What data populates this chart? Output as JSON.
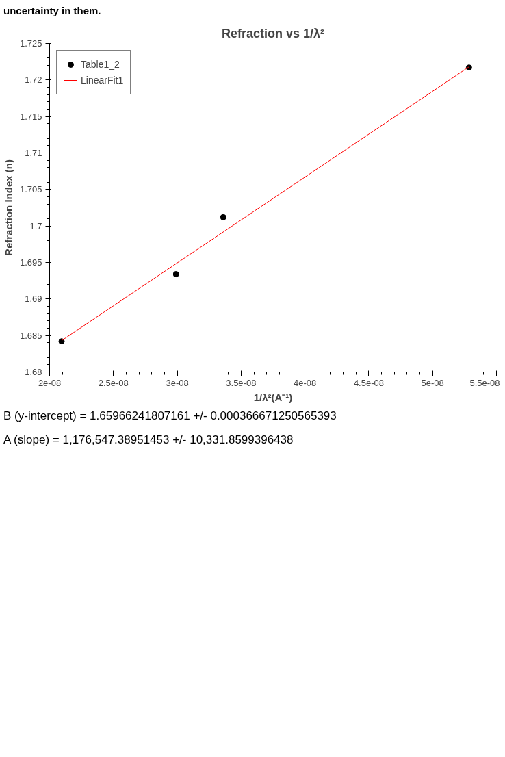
{
  "chart_data": {
    "type": "scatter",
    "title": "Refraction vs 1/λ²",
    "xlabel": "1/λ²(A⁻¹)",
    "ylabel": "Refraction Index (n)",
    "xlim": [
      2e-08,
      5.5e-08
    ],
    "ylim": [
      1.68,
      1.725
    ],
    "xticks": [
      {
        "value": 2e-08,
        "label": "2e-08"
      },
      {
        "value": 2.5e-08,
        "label": "2.5e-08"
      },
      {
        "value": 3e-08,
        "label": "3e-08"
      },
      {
        "value": 3.5e-08,
        "label": "3.5e-08"
      },
      {
        "value": 4e-08,
        "label": "4e-08"
      },
      {
        "value": 4.5e-08,
        "label": "4.5e-08"
      },
      {
        "value": 5e-08,
        "label": "5e-08"
      },
      {
        "value": 5.5e-08,
        "label": "5.5e-08"
      }
    ],
    "yticks": [
      1.68,
      1.685,
      1.69,
      1.695,
      1.7,
      1.705,
      1.71,
      1.715,
      1.72,
      1.725
    ],
    "series": [
      {
        "name": "Table1_2",
        "type": "scatter",
        "color": "#000000",
        "marker": "circle",
        "x": [
          2.094e-08,
          2.99e-08,
          3.36e-08,
          5.285e-08
        ],
        "values": [
          1.6842,
          1.6934,
          1.7012,
          1.7217
        ]
      },
      {
        "name": "LinearFit1",
        "type": "line",
        "color": "#ff0000",
        "line_style": "solid",
        "x": [
          2.094e-08,
          5.285e-08
        ],
        "values": [
          1.6843,
          1.7218
        ]
      }
    ],
    "legend": "top left",
    "grid": false,
    "annotations": [
      "uncertainty in them.",
      "B (y-intercept) = 1.65966241807161 +/- 0.000366671250565393",
      "A (slope) = 1,176,547.38951453 +/- 10,331.8599396438"
    ]
  }
}
